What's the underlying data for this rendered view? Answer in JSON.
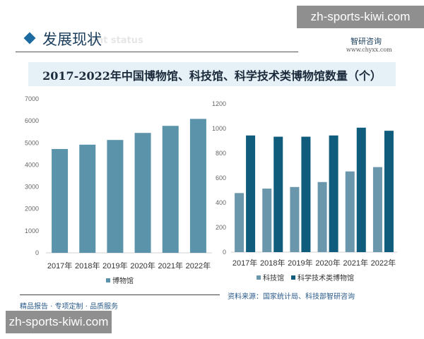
{
  "header": {
    "section_title": "发展现状",
    "section_subtitle": "ent status",
    "logo_text": "智研咨询",
    "logo_url": "www.chyxx.com"
  },
  "watermarks": {
    "top": "zh-sports-kiwi.com",
    "bottom": "zh-sports-kiwi.com"
  },
  "footer": {
    "source": "资料来源：国家统计局、科技部智研咨询",
    "slogan": "精品报告 · 专项定制 · 品质服务"
  },
  "colors": {
    "museum": "#5b93ab",
    "sci_center": "#6a97ab",
    "sci_museum": "#0f5c7c"
  },
  "chart_data": [
    {
      "type": "bar",
      "title": "2017-2022年中国博物馆、科技馆、科学技术类博物馆数量（个）",
      "categories": [
        "2017年",
        "2018年",
        "2019年",
        "2020年",
        "2021年",
        "2022年"
      ],
      "series": [
        {
          "name": "博物馆",
          "values": [
            4721,
            4918,
            5132,
            5452,
            5772,
            6091
          ]
        }
      ],
      "ylim": [
        0,
        7000
      ],
      "yticks": [
        "0",
        "1000",
        "2000",
        "3000",
        "4000",
        "5000",
        "6000",
        "7000"
      ],
      "legend": "bottom",
      "grid": false
    },
    {
      "type": "bar",
      "categories": [
        "2017年",
        "2018年",
        "2019年",
        "2020年",
        "2021年",
        "2022年"
      ],
      "series": [
        {
          "name": "科技馆",
          "values": [
            478,
            514,
            527,
            567,
            653,
            688
          ]
        },
        {
          "name": "科学技术类博物馆",
          "values": [
            944,
            934,
            934,
            944,
            1007,
            982
          ]
        }
      ],
      "ylim": [
        0,
        1200
      ],
      "yticks": [
        "0",
        "200",
        "400",
        "600",
        "800",
        "1000",
        "1200"
      ],
      "legend": "bottom",
      "grid": false
    }
  ]
}
